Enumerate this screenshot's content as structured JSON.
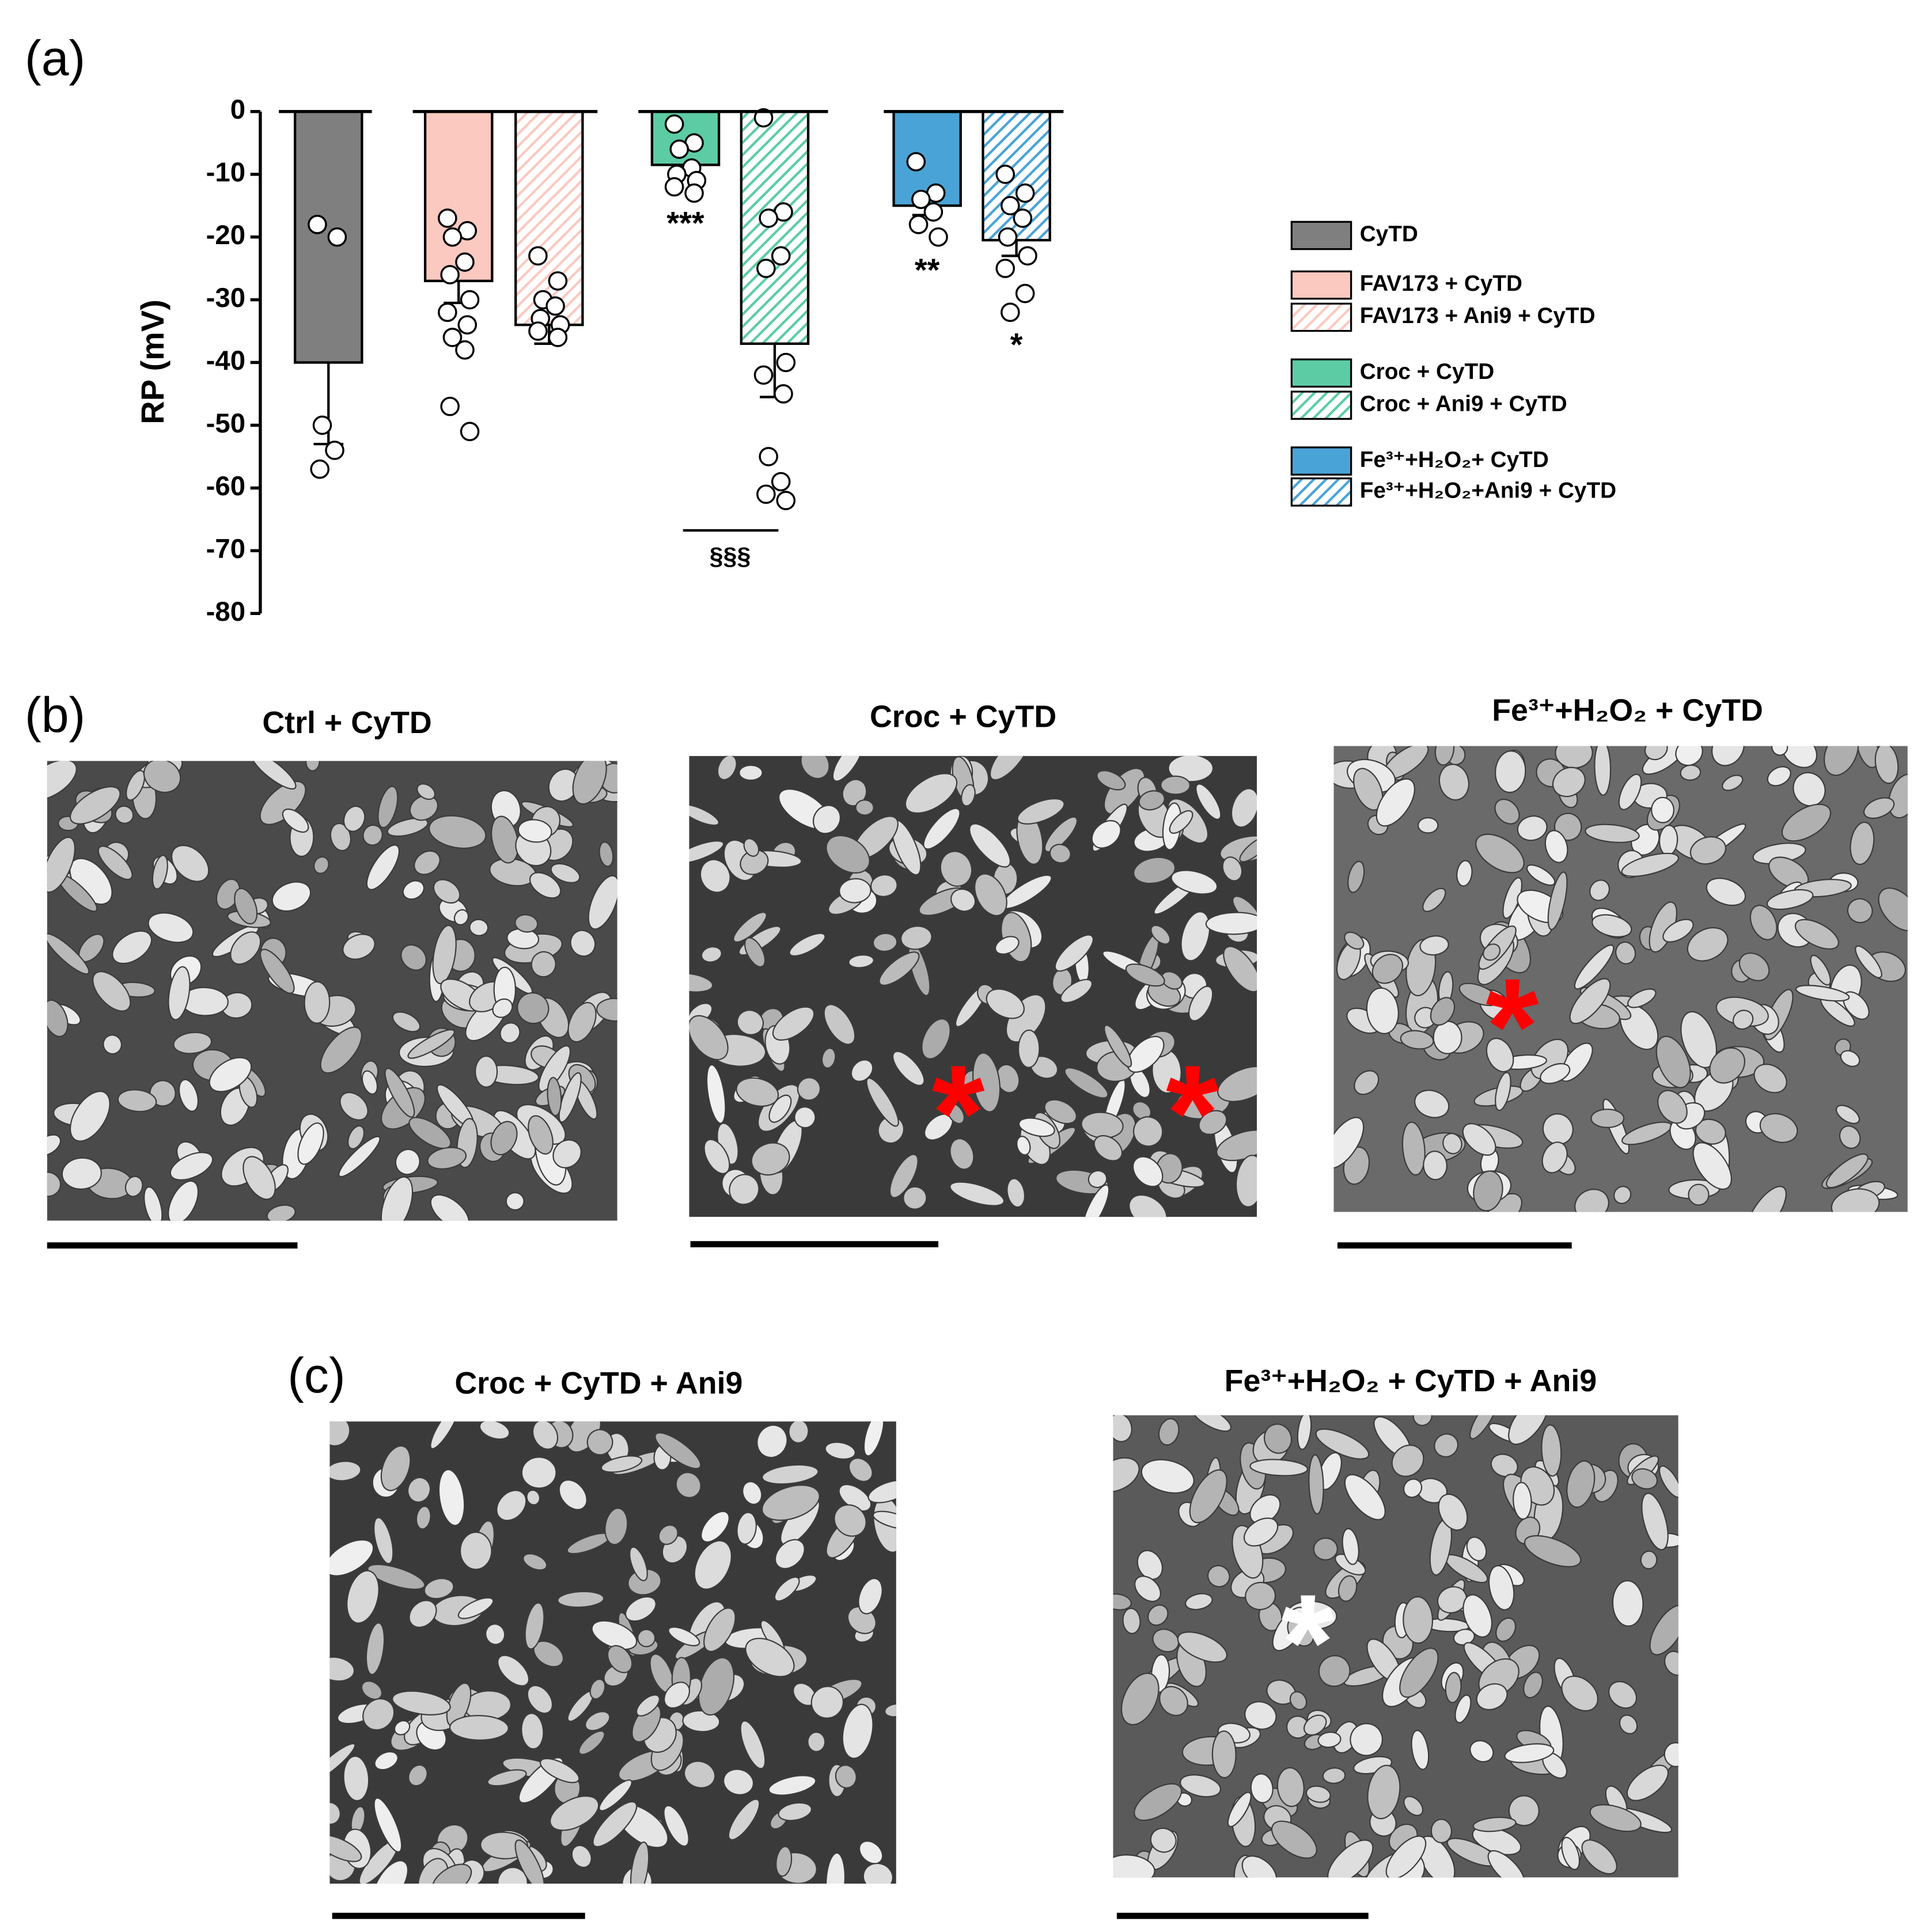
{
  "chart_data": {
    "type": "bar",
    "panel_label": "(a)",
    "y_label": "RP (mV)",
    "ylim": [
      -80,
      0
    ],
    "yticks": [
      0,
      -10,
      -20,
      -30,
      -40,
      -50,
      -60,
      -70,
      -80
    ],
    "series": [
      {
        "name": "CyTD",
        "color": "#7f7f7f",
        "hatched": false,
        "values": [
          -40
        ],
        "errors": [
          13
        ],
        "points": [
          -18,
          -20,
          -50,
          -54,
          -57
        ]
      },
      {
        "name": "FAV173 + CyTD",
        "color": "#fcc9c0",
        "hatched": false,
        "values": [
          -27
        ],
        "errors": [
          3.5
        ],
        "points": [
          -17,
          -19,
          -20,
          -24,
          -26,
          -30,
          -32,
          -34,
          -36,
          -38,
          -47,
          -51
        ]
      },
      {
        "name": "FAV173 + Ani9 + CyTD",
        "color": "#fcc9c0",
        "hatched": true,
        "values": [
          -34
        ],
        "errors": [
          3
        ],
        "points": [
          -23,
          -27,
          -30,
          -31,
          -33,
          -34,
          -35,
          -36
        ]
      },
      {
        "name": "Croc + CyTD",
        "color": "#5ccca5",
        "hatched": false,
        "values": [
          -8.5
        ],
        "errors": [
          1.5
        ],
        "points": [
          -2,
          -5,
          -6,
          -9,
          -10,
          -11,
          -12,
          -13
        ],
        "annotation": "***"
      },
      {
        "name": "Croc + Ani9 + CyTD",
        "color": "#5ccca5",
        "hatched": true,
        "values": [
          -37
        ],
        "errors": [
          8.5
        ],
        "points": [
          -1,
          -16,
          -17,
          -23,
          -25,
          -40,
          -42,
          -45,
          -55,
          -59,
          -61,
          -62
        ]
      },
      {
        "name": "Fe³⁺+H₂O₂+ CyTD",
        "color": "#4aa3d6",
        "hatched": false,
        "values": [
          -15
        ],
        "errors": [
          1.5
        ],
        "points": [
          -8,
          -13,
          -14,
          -16,
          -18,
          -20
        ],
        "annotation": "**"
      },
      {
        "name": "Fe³⁺+H₂O₂+Ani9 + CyTD",
        "color": "#4aa3d6",
        "hatched": true,
        "values": [
          -20.5
        ],
        "errors": [
          2.5
        ],
        "points": [
          -10,
          -13,
          -15,
          -17,
          -20,
          -23,
          -25,
          -29,
          -32
        ],
        "annotation": "*"
      }
    ],
    "comparison": {
      "label": "§§§",
      "between": [
        3,
        4
      ]
    }
  },
  "panel_b": {
    "label": "(b)",
    "images": [
      {
        "title": "Ctrl + CyTD",
        "markers": []
      },
      {
        "title": "Croc + CyTD",
        "markers": [
          "*",
          "*"
        ]
      },
      {
        "title": "Fe³⁺+H₂O₂ + CyTD",
        "markers": [
          "*"
        ]
      }
    ]
  },
  "panel_c": {
    "label": "(c)",
    "images": [
      {
        "title": "Croc + CyTD + Ani9",
        "markers": []
      },
      {
        "title": "Fe³⁺+H₂O₂ + CyTD + Ani9",
        "markers": [
          "*"
        ]
      }
    ]
  }
}
